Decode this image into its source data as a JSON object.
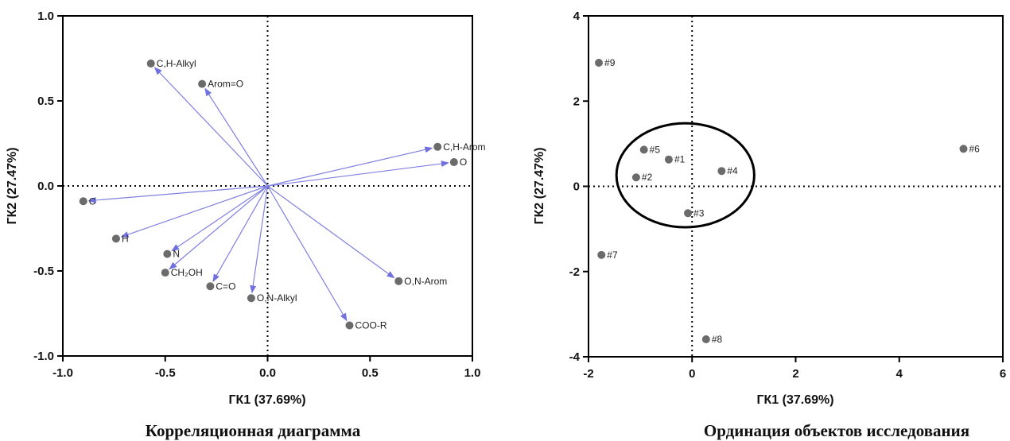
{
  "chart_data": [
    {
      "type": "scatter",
      "variant": "loadings-biplot",
      "caption": "Корреляционная диаграмма",
      "xlabel": "ГК1 (37.69%)",
      "ylabel": "ГК2 (27.47%)",
      "xlim": [
        -1.0,
        1.0
      ],
      "ylim": [
        -1.0,
        1.0
      ],
      "xticks": [
        -1.0,
        -0.5,
        0.0,
        0.5,
        1.0
      ],
      "yticks": [
        -1.0,
        -0.5,
        0.0,
        0.5,
        1.0
      ],
      "xtick_labels": [
        "-1.0",
        "-0.5",
        "0.0",
        "0.5",
        "1.0"
      ],
      "ytick_labels": [
        "-1.0",
        "-0.5",
        "0.0",
        "0.5",
        "1.0"
      ],
      "zero_lines": "dotted",
      "arrow_color": "#8080e0",
      "marker_color": "#6b6b6b",
      "points": [
        {
          "label": "C,H-Alkyl",
          "x": -0.57,
          "y": 0.72
        },
        {
          "label": "Arom=O",
          "x": -0.32,
          "y": 0.6
        },
        {
          "label": "C,H-Arom",
          "x": 0.83,
          "y": 0.23
        },
        {
          "label": "O",
          "x": 0.91,
          "y": 0.14
        },
        {
          "label": "C",
          "x": -0.9,
          "y": -0.09
        },
        {
          "label": "H",
          "x": -0.74,
          "y": -0.31
        },
        {
          "label": "N",
          "x": -0.49,
          "y": -0.4
        },
        {
          "label": "CH₂OH",
          "x": -0.5,
          "y": -0.51
        },
        {
          "label": "C=O",
          "x": -0.28,
          "y": -0.59
        },
        {
          "label": "O,N-Alkyl",
          "x": -0.08,
          "y": -0.66
        },
        {
          "label": "O,N-Arom",
          "x": 0.64,
          "y": -0.56
        },
        {
          "label": "COO-R",
          "x": 0.4,
          "y": -0.82
        }
      ]
    },
    {
      "type": "scatter",
      "variant": "scores-plot",
      "caption": "Ординация объектов исследования",
      "xlabel": "ГК1 (37.69%)",
      "ylabel": "ГК2 (27.47%)",
      "xlim": [
        -2,
        6
      ],
      "ylim": [
        -4,
        4
      ],
      "xticks": [
        -2,
        0,
        2,
        4,
        6
      ],
      "yticks": [
        -4,
        -2,
        0,
        2,
        4
      ],
      "xtick_labels": [
        "-2",
        "0",
        "2",
        "4",
        "6"
      ],
      "ytick_labels": [
        "-4",
        "-2",
        "0",
        "2",
        "4"
      ],
      "zero_lines": "dotted",
      "marker_color": "#6b6b6b",
      "points": [
        {
          "label": "#1",
          "x": -0.45,
          "y": 0.63
        },
        {
          "label": "#2",
          "x": -1.08,
          "y": 0.21
        },
        {
          "label": "#3",
          "x": -0.08,
          "y": -0.63
        },
        {
          "label": "#4",
          "x": 0.57,
          "y": 0.36
        },
        {
          "label": "#5",
          "x": -0.93,
          "y": 0.86
        },
        {
          "label": "#6",
          "x": 5.24,
          "y": 0.88
        },
        {
          "label": "#7",
          "x": -1.75,
          "y": -1.61
        },
        {
          "label": "#8",
          "x": 0.27,
          "y": -3.59
        },
        {
          "label": "#9",
          "x": -1.8,
          "y": 2.9
        }
      ],
      "highlight_ellipse": {
        "center": [
          -0.13,
          0.26
        ],
        "radii": [
          1.33,
          1.22
        ]
      }
    }
  ]
}
